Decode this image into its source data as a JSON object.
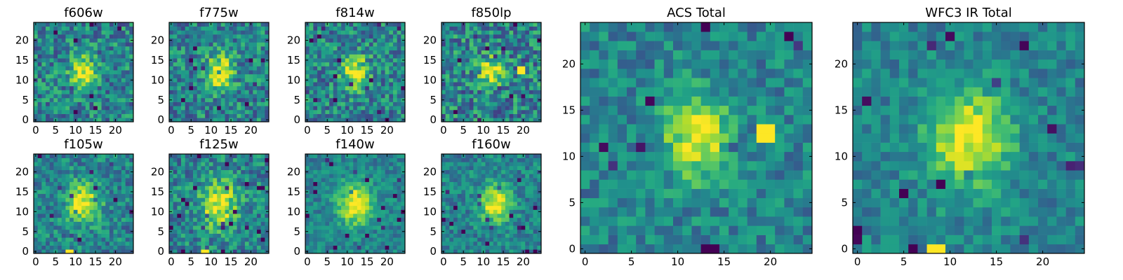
{
  "figure": {
    "description_type": "image-grid",
    "panels_count": 10
  },
  "chart_data": [
    {
      "type": "heatmap",
      "title": "f606w",
      "x_ticks": [
        "0",
        "5",
        "10",
        "15",
        "20"
      ],
      "y_ticks": [
        "0",
        "5",
        "10",
        "15",
        "20"
      ],
      "xlim": [
        0,
        25
      ],
      "ylim": [
        0,
        25
      ],
      "grid_size": 25,
      "peak": [
        12,
        12
      ],
      "spread": 2.2,
      "noise": 0.5,
      "seed": 11,
      "hot_pixels": []
    },
    {
      "type": "heatmap",
      "title": "f775w",
      "x_ticks": [
        "0",
        "5",
        "10",
        "15",
        "20"
      ],
      "y_ticks": [
        "0",
        "5",
        "10",
        "15",
        "20"
      ],
      "xlim": [
        0,
        25
      ],
      "ylim": [
        0,
        25
      ],
      "grid_size": 25,
      "peak": [
        12,
        12
      ],
      "spread": 2.5,
      "noise": 0.5,
      "seed": 23,
      "hot_pixels": []
    },
    {
      "type": "heatmap",
      "title": "f814w",
      "x_ticks": [
        "0",
        "5",
        "10",
        "15",
        "20"
      ],
      "y_ticks": [
        "0",
        "5",
        "10",
        "15",
        "20"
      ],
      "xlim": [
        0,
        25
      ],
      "ylim": [
        0,
        25
      ],
      "grid_size": 25,
      "peak": [
        12,
        12
      ],
      "spread": 2.3,
      "noise": 0.5,
      "seed": 37,
      "hot_pixels": []
    },
    {
      "type": "heatmap",
      "title": "f850lp",
      "x_ticks": [
        "0",
        "5",
        "10",
        "15",
        "20"
      ],
      "y_ticks": [
        "0",
        "5",
        "10",
        "15",
        "20"
      ],
      "xlim": [
        0,
        25
      ],
      "ylim": [
        0,
        25
      ],
      "grid_size": 25,
      "peak": [
        12,
        12
      ],
      "spread": 2.0,
      "noise": 0.55,
      "seed": 41,
      "hot_pixels": [
        [
          19,
          12
        ],
        [
          20,
          12
        ],
        [
          19,
          13
        ],
        [
          20,
          13
        ]
      ]
    },
    {
      "type": "heatmap",
      "title": "f105w",
      "x_ticks": [
        "0",
        "5",
        "10",
        "15",
        "20"
      ],
      "y_ticks": [
        "0",
        "5",
        "10",
        "15",
        "20"
      ],
      "xlim": [
        0,
        25
      ],
      "ylim": [
        0,
        25
      ],
      "grid_size": 25,
      "peak": [
        12,
        12
      ],
      "spread": 2.8,
      "noise": 0.4,
      "seed": 53,
      "hot_pixels": [
        [
          8,
          0
        ],
        [
          9,
          0
        ]
      ]
    },
    {
      "type": "heatmap",
      "title": "f125w",
      "x_ticks": [
        "0",
        "5",
        "10",
        "15",
        "20"
      ],
      "y_ticks": [
        "0",
        "5",
        "10",
        "15",
        "20"
      ],
      "xlim": [
        0,
        25
      ],
      "ylim": [
        0,
        25
      ],
      "grid_size": 25,
      "peak": [
        12,
        12
      ],
      "spread": 3.2,
      "noise": 0.45,
      "seed": 67,
      "hot_pixels": [
        [
          8,
          0
        ],
        [
          9,
          0
        ]
      ]
    },
    {
      "type": "heatmap",
      "title": "f140w",
      "x_ticks": [
        "0",
        "5",
        "10",
        "15",
        "20"
      ],
      "y_ticks": [
        "0",
        "5",
        "10",
        "15",
        "20"
      ],
      "xlim": [
        0,
        25
      ],
      "ylim": [
        0,
        25
      ],
      "grid_size": 25,
      "peak": [
        12,
        12
      ],
      "spread": 3.0,
      "noise": 0.3,
      "seed": 71,
      "hot_pixels": []
    },
    {
      "type": "heatmap",
      "title": "f160w",
      "x_ticks": [
        "0",
        "5",
        "10",
        "15",
        "20"
      ],
      "y_ticks": [
        "0",
        "5",
        "10",
        "15",
        "20"
      ],
      "xlim": [
        0,
        25
      ],
      "ylim": [
        0,
        25
      ],
      "grid_size": 25,
      "peak": [
        13,
        12
      ],
      "spread": 2.6,
      "noise": 0.35,
      "seed": 83,
      "hot_pixels": []
    },
    {
      "type": "heatmap",
      "title": "ACS Total",
      "x_ticks": [
        "0",
        "5",
        "10",
        "15",
        "20"
      ],
      "y_ticks": [
        "0",
        "5",
        "10",
        "15",
        "20"
      ],
      "xlim": [
        0,
        25
      ],
      "ylim": [
        0,
        25
      ],
      "grid_size": 25,
      "peak": [
        12,
        12
      ],
      "spread": 2.4,
      "noise": 0.35,
      "seed": 97,
      "hot_pixels": [
        [
          19,
          12
        ],
        [
          20,
          12
        ],
        [
          19,
          13
        ],
        [
          20,
          13
        ]
      ]
    },
    {
      "type": "heatmap",
      "title": "WFC3 IR Total",
      "x_ticks": [
        "0",
        "5",
        "10",
        "15",
        "20"
      ],
      "y_ticks": [
        "0",
        "5",
        "10",
        "15",
        "20"
      ],
      "xlim": [
        0,
        25
      ],
      "ylim": [
        0,
        25
      ],
      "grid_size": 25,
      "peak": [
        12,
        12
      ],
      "spread": 3.0,
      "noise": 0.3,
      "seed": 101,
      "hot_pixels": [
        [
          8,
          0
        ],
        [
          9,
          0
        ]
      ]
    }
  ]
}
